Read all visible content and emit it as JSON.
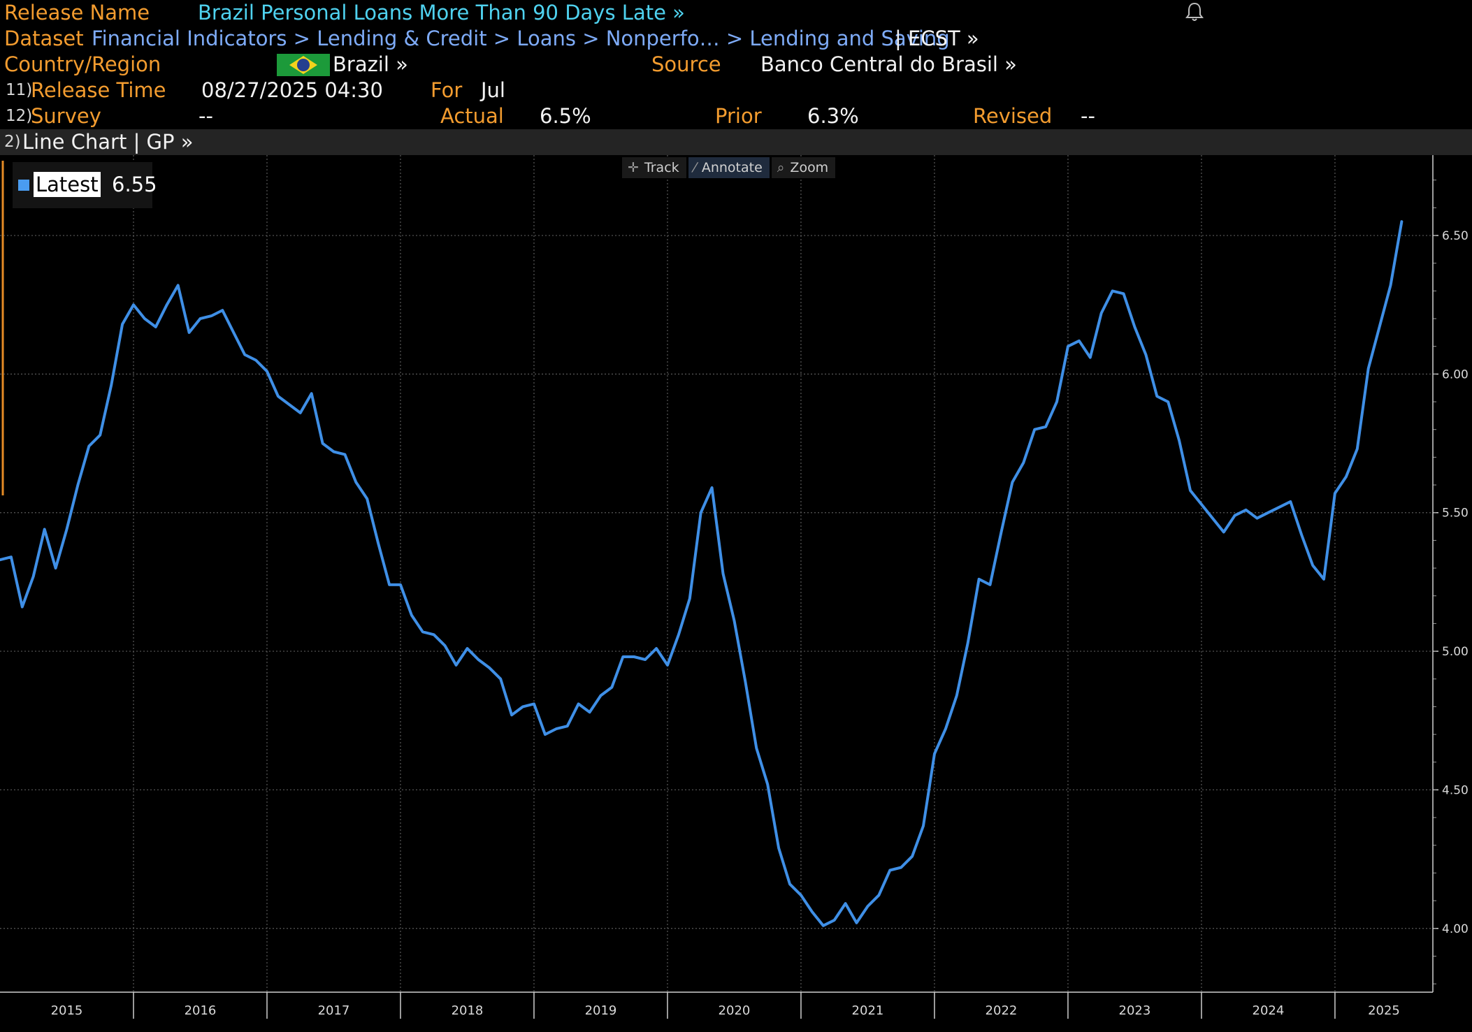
{
  "header": {
    "release_label": "Release Name",
    "release_name": "Brazil Personal Loans More Than 90 Days Late »",
    "dataset_label": "Dataset",
    "dataset_path": "Financial Indicators > Lending & Credit > Loans > Nonperfo… > Lending and Saving",
    "dataset_tail": "| ECST »",
    "country_label": "Country/Region",
    "country": "Brazil »",
    "source_label": "Source",
    "source": "Banco Central do Brasil »",
    "release_time_num": "11)",
    "release_time_label": "Release Time",
    "release_time": "08/27/2025 04:30",
    "for_label": "For",
    "for_value": "Jul",
    "survey_num": "12)",
    "survey_label": "Survey",
    "survey_value": "--",
    "actual_label": "Actual",
    "actual_value": "6.5%",
    "prior_label": "Prior",
    "prior_value": "6.3%",
    "revised_label": "Revised",
    "revised_value": "--",
    "bell_icon": "bell-icon",
    "flag_icon": "brazil-flag-icon"
  },
  "chart_bar": {
    "num": "2)",
    "label": "Line Chart | GP »"
  },
  "toolbar": {
    "track": "Track",
    "annotate": "Annotate",
    "zoom": "Zoom",
    "track_icon": "crosshair-icon",
    "annotate_icon": "pencil-icon",
    "zoom_icon": "magnifier-icon"
  },
  "legend": {
    "label": "Latest",
    "value": "6.55",
    "color": "#4a9cf0"
  },
  "colors": {
    "line": "#3f8fe6",
    "label": "#f39c2f",
    "title": "#4fd2ef",
    "link": "#7eabf7",
    "background": "#000000"
  },
  "chart_data": {
    "type": "line",
    "title": "",
    "xlabel": "",
    "ylabel": "",
    "ylim": [
      3.77,
      6.79
    ],
    "yticks": [
      4.0,
      4.5,
      5.0,
      5.5,
      6.0,
      6.5
    ],
    "ytick_labels": [
      "4.00",
      "4.50",
      "5.00",
      "5.50",
      "6.00",
      "6.50"
    ],
    "x_categories": [
      "2015",
      "2016",
      "2017",
      "2018",
      "2019",
      "2020",
      "2021",
      "2022",
      "2023",
      "2024",
      "2025"
    ],
    "x_range": [
      "2015-01",
      "2025-07"
    ],
    "grid": true,
    "legend_position": "top-left",
    "series": [
      {
        "name": "Latest",
        "frequency": "monthly",
        "start": "2015-01",
        "values": [
          5.33,
          5.34,
          5.16,
          5.27,
          5.44,
          5.3,
          5.44,
          5.6,
          5.74,
          5.78,
          5.96,
          6.18,
          6.25,
          6.2,
          6.17,
          6.25,
          6.32,
          6.15,
          6.2,
          6.21,
          6.23,
          6.15,
          6.07,
          6.05,
          6.01,
          5.92,
          5.89,
          5.86,
          5.93,
          5.75,
          5.72,
          5.71,
          5.61,
          5.55,
          5.39,
          5.24,
          5.24,
          5.13,
          5.07,
          5.06,
          5.02,
          4.95,
          5.01,
          4.97,
          4.94,
          4.9,
          4.77,
          4.8,
          4.81,
          4.7,
          4.72,
          4.73,
          4.81,
          4.78,
          4.84,
          4.87,
          4.98,
          4.98,
          4.97,
          5.01,
          4.95,
          5.06,
          5.19,
          5.5,
          5.59,
          5.28,
          5.11,
          4.89,
          4.65,
          4.52,
          4.29,
          4.16,
          4.12,
          4.06,
          4.01,
          4.03,
          4.09,
          4.02,
          4.08,
          4.12,
          4.21,
          4.22,
          4.26,
          4.37,
          4.63,
          4.72,
          4.84,
          5.03,
          5.26,
          5.24,
          5.43,
          5.61,
          5.68,
          5.8,
          5.81,
          5.9,
          6.1,
          6.12,
          6.06,
          6.22,
          6.3,
          6.29,
          6.17,
          6.07,
          5.92,
          5.9,
          5.76,
          5.58,
          5.53,
          5.48,
          5.43,
          5.49,
          5.51,
          5.48,
          5.5,
          5.52,
          5.54,
          5.42,
          5.31,
          5.26,
          5.57,
          5.63,
          5.73,
          6.02,
          6.17,
          6.32,
          6.55
        ]
      }
    ]
  }
}
